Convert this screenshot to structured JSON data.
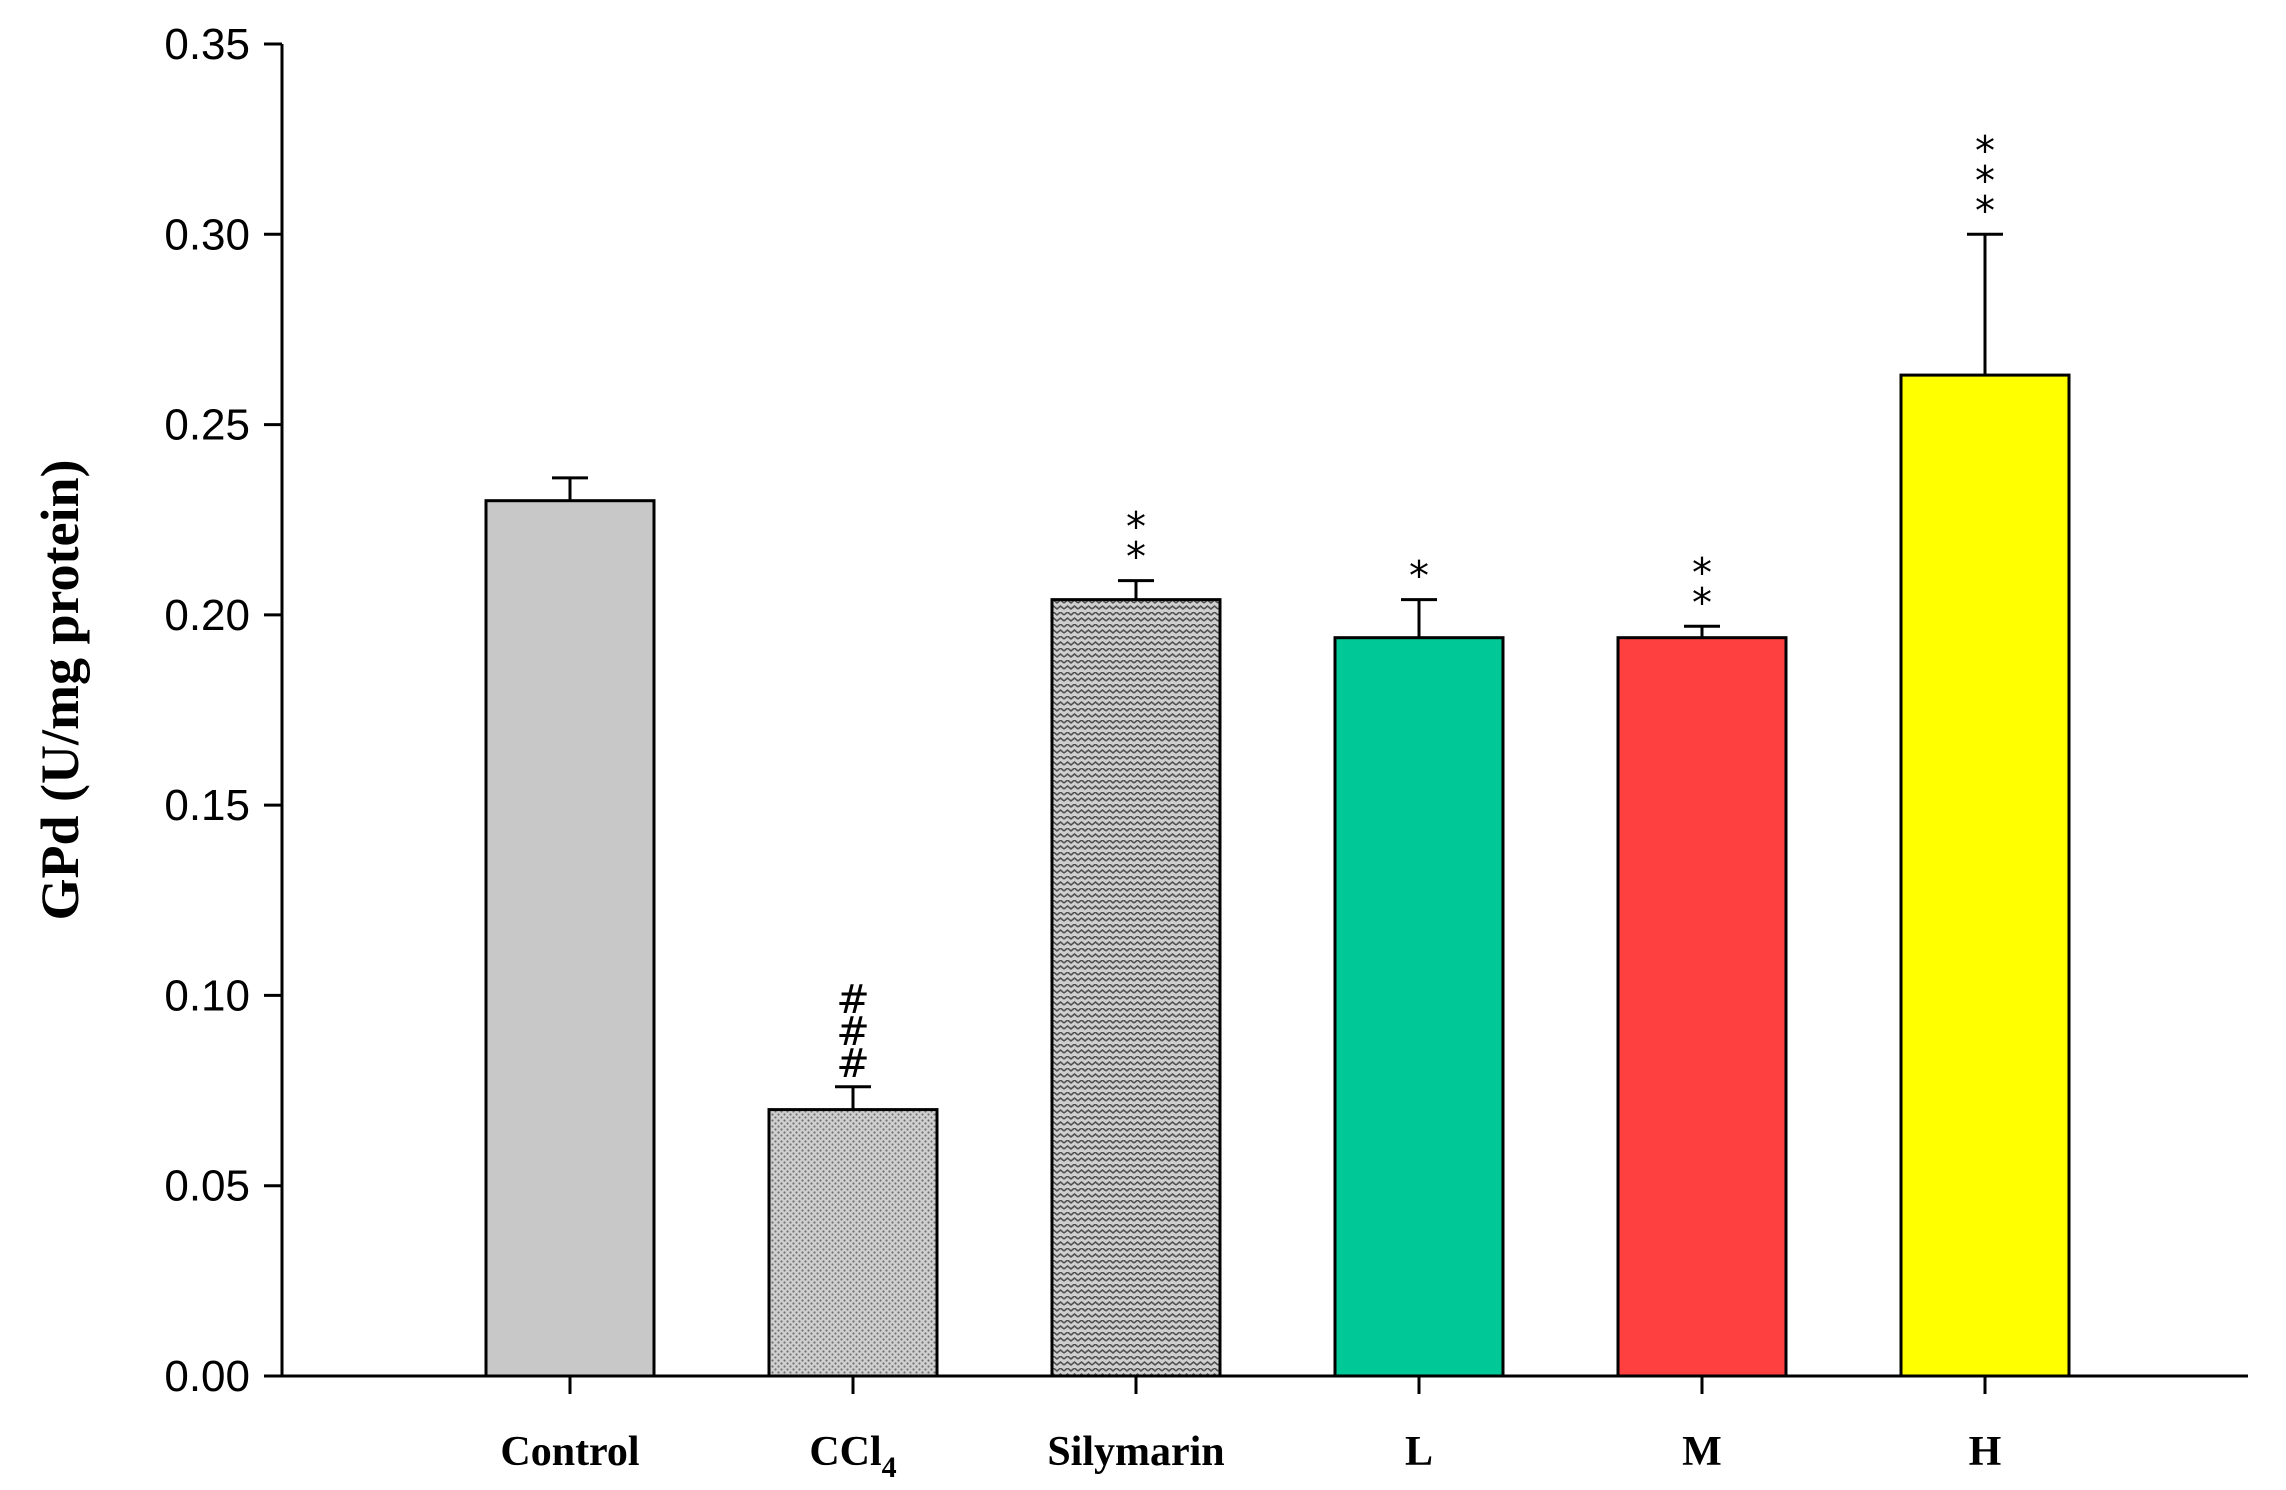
{
  "chart_data": {
    "type": "bar",
    "title": "",
    "xlabel": "",
    "ylabel": "GPd (U/mg protein)",
    "ylim": [
      0,
      0.35
    ],
    "yticks": [
      "0.00",
      "0.05",
      "0.10",
      "0.15",
      "0.20",
      "0.25",
      "0.30",
      "0.35"
    ],
    "categories": [
      {
        "label": "Control",
        "sub": ""
      },
      {
        "label": "CCl",
        "sub": "4"
      },
      {
        "label": "Silymarin",
        "sub": ""
      },
      {
        "label": "L",
        "sub": ""
      },
      {
        "label": "M",
        "sub": ""
      },
      {
        "label": "H",
        "sub": ""
      }
    ],
    "values": [
      0.23,
      0.07,
      0.204,
      0.194,
      0.194,
      0.263
    ],
    "errors": [
      0.006,
      0.006,
      0.005,
      0.01,
      0.003,
      0.037
    ],
    "significance": [
      "",
      "###",
      "**",
      "*",
      "**",
      "***"
    ],
    "colors": [
      "#c8c8c8",
      "#c8c8c8",
      "#c0c0c0",
      "#00c896",
      "#ff4040",
      "#ffff00"
    ],
    "fills": [
      "solid",
      "dots",
      "waves",
      "solid",
      "solid",
      "solid"
    ]
  }
}
